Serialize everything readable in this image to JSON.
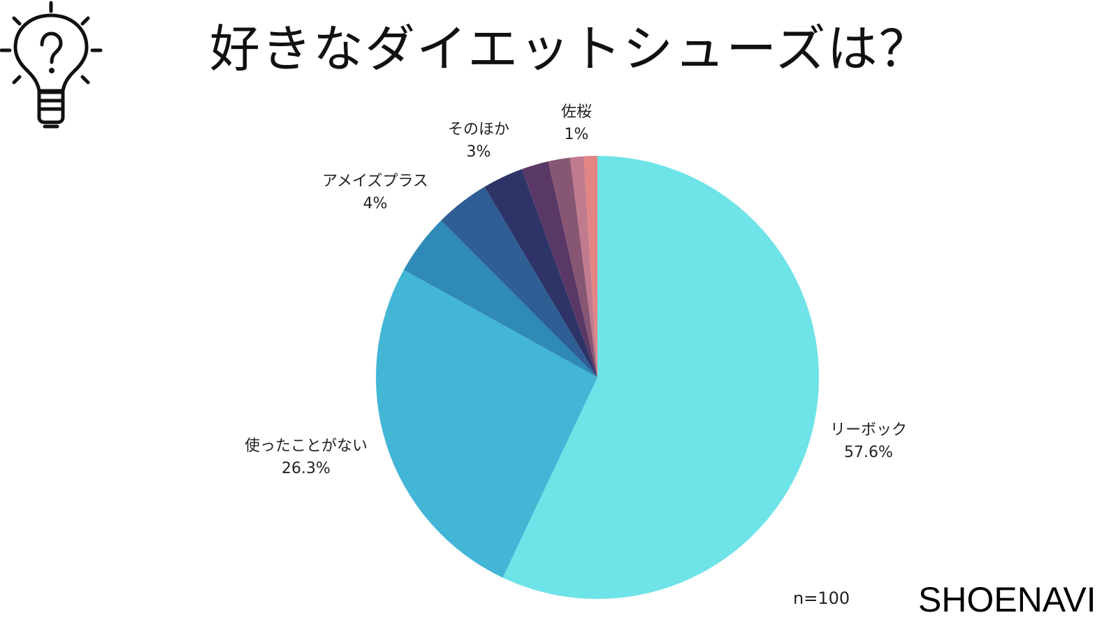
{
  "title": "好きなダイエットシューズは？",
  "icon": "lightbulb-question-icon",
  "sample_size": "n=100",
  "brand": "SHOENAVI",
  "chart_data": {
    "type": "pie",
    "title": "好きなダイエットシューズは？",
    "start": "top, clockwise",
    "slices": [
      {
        "label": "リーボック",
        "value": 57.6,
        "value_label": "57.6%",
        "color": "#6EE3E8",
        "labeled": true
      },
      {
        "label": "使ったことがない",
        "value": 26.3,
        "value_label": "26.3%",
        "color": "#43B6D6",
        "labeled": true
      },
      {
        "label": "",
        "value": 4.5,
        "value_label": "",
        "color": "#2F8AB7",
        "labeled": false
      },
      {
        "label": "アメイズプラス",
        "value": 4,
        "value_label": "4%",
        "color": "#2F5E95",
        "labeled": true
      },
      {
        "label": "そのほか",
        "value": 3,
        "value_label": "3%",
        "color": "#2E3467",
        "labeled": true
      },
      {
        "label": "",
        "value": 2,
        "value_label": "",
        "color": "#5A3866",
        "labeled": false
      },
      {
        "label": "",
        "value": 1.6,
        "value_label": "",
        "color": "#875673",
        "labeled": false
      },
      {
        "label": "",
        "value": 1,
        "value_label": "",
        "color": "#C07C8E",
        "labeled": false
      },
      {
        "label": "佐桜",
        "value": 1,
        "value_label": "1%",
        "color": "#E38485",
        "labeled": true
      }
    ]
  }
}
